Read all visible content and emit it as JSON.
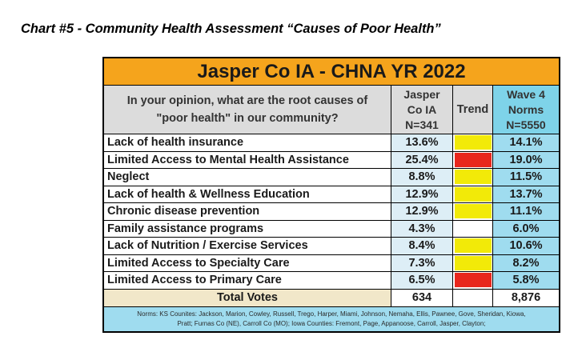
{
  "heading": "Chart #5 - Community Health Assessment “Causes of Poor Health”",
  "banner": "Jasper Co IA - CHNA YR 2022",
  "header": {
    "question_line1": "In your opinion, what are the root causes of",
    "question_line2": "\"poor health\" in our community?",
    "jasper_line1": "Jasper",
    "jasper_line2": "Co IA",
    "jasper_line3": "N=341",
    "trend": "Trend",
    "norms_line1": "Wave 4",
    "norms_line2": "Norms",
    "norms_line3": "N=5550"
  },
  "colors": {
    "banner": "#f5a41c",
    "yellow": "#f2ea08",
    "red": "#e8261c",
    "white": "#ffffff"
  },
  "rows": [
    {
      "cause": "Lack of health insurance",
      "jasper": "13.6%",
      "trend": "yellow",
      "norm": "14.1%"
    },
    {
      "cause": "Limited Access to Mental Health Assistance",
      "jasper": "25.4%",
      "trend": "red",
      "norm": "19.0%"
    },
    {
      "cause": "Neglect",
      "jasper": "8.8%",
      "trend": "yellow",
      "norm": "11.5%"
    },
    {
      "cause": "Lack of health & Wellness Education",
      "jasper": "12.9%",
      "trend": "yellow",
      "norm": "13.7%"
    },
    {
      "cause": "Chronic disease prevention",
      "jasper": "12.9%",
      "trend": "yellow",
      "norm": "11.1%"
    },
    {
      "cause": "Family assistance programs",
      "jasper": "4.3%",
      "trend": "none",
      "norm": "6.0%"
    },
    {
      "cause": "Lack of Nutrition / Exercise Services",
      "jasper": "8.4%",
      "trend": "yellow",
      "norm": "10.6%"
    },
    {
      "cause": "Limited Access to Specialty Care",
      "jasper": "7.3%",
      "trend": "yellow",
      "norm": "8.2%"
    },
    {
      "cause": "Limited Access to Primary Care",
      "jasper": "6.5%",
      "trend": "red",
      "norm": "5.8%"
    }
  ],
  "total": {
    "label": "Total Votes",
    "jasper": "634",
    "norm": "8,876"
  },
  "footnote_line1": "Norms: KS Counites: Jackson, Marion, Cowley, Russell, Trego, Harper, Miami, Johnson, Nemaha, Ellis, Pawnee, Gove, Sheridan, Kiowa,",
  "footnote_line2": "Pratt; Furnas Co (NE), Carroll Co (MO); Iowa Counties: Fremont, Page, Appanoose, Carroll, Jasper, Clayton;"
}
